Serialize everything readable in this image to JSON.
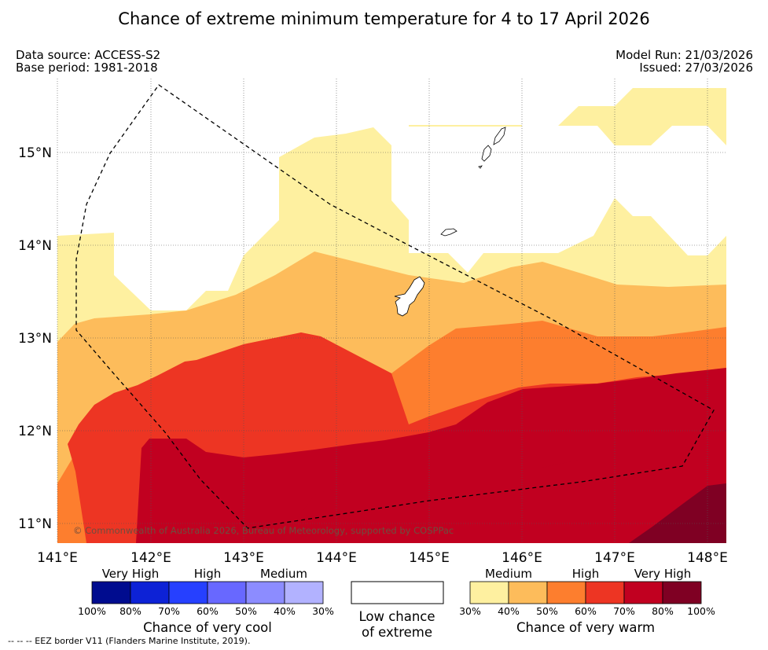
{
  "title": "Chance of extreme minimum temperature for 4 to 17 April 2026",
  "header": {
    "data_source": "Data source: ACCESS-S2",
    "base_period": "Base period: 1981-2018",
    "model_run": "Model Run: 21/03/2026",
    "issued": "Issued: 27/03/2026"
  },
  "map": {
    "lat_labels": [
      "15°N",
      "14°N",
      "13°N",
      "12°N",
      "11°N"
    ],
    "lon_labels": [
      "141°E",
      "142°E",
      "143°E",
      "144°E",
      "145°E",
      "146°E",
      "147°E",
      "148°E"
    ],
    "copyright": "© Commonwealth of Australia 2026, Bureau of Meteorology, supported by COSPPac",
    "colors": {
      "warm_30_40": "#fef0a0",
      "warm_40_50": "#fdbc5b",
      "warm_50_60": "#fd7e2e",
      "warm_60_70": "#ed3523",
      "warm_70_80": "#c10020",
      "warm_80_100": "#7f0023"
    }
  },
  "legend": {
    "cool": {
      "categories": [
        "Very High",
        "High",
        "Medium"
      ],
      "ticks": [
        "100%",
        "80%",
        "70%",
        "60%",
        "50%",
        "40%",
        "30%"
      ],
      "title": "Chance of very cool",
      "colors": [
        "#000c8f",
        "#0d22d6",
        "#2640ff",
        "#6868ff",
        "#8c8cff",
        "#b2b2ff"
      ]
    },
    "low": {
      "title_line1": "Low chance",
      "title_line2": "of extreme"
    },
    "warm": {
      "categories": [
        "Medium",
        "High",
        "Very High"
      ],
      "ticks": [
        "30%",
        "40%",
        "50%",
        "60%",
        "70%",
        "80%",
        "100%"
      ],
      "title": "Chance of very warm",
      "colors": [
        "#fef0a0",
        "#fdbc5b",
        "#fd7e2e",
        "#ed3523",
        "#c10020",
        "#7f0023"
      ]
    }
  },
  "footnote": "--  --  -- EEZ border V11 (Flanders Marine Institute, 2019)."
}
